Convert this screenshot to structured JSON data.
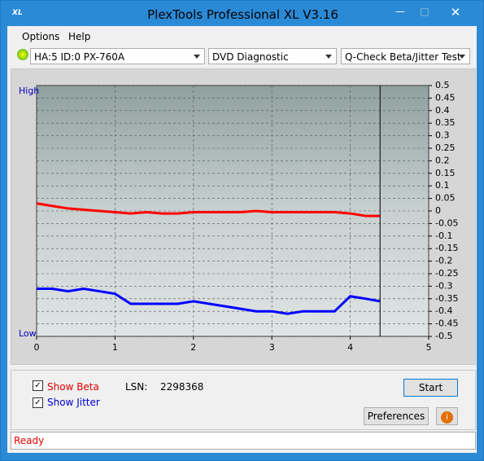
{
  "window": {
    "title": "PlexTools Professional XL V3.16",
    "icon": "XL"
  },
  "menu": [
    "Options",
    "Help"
  ],
  "toolbar": {
    "drive": "HA:5 ID:0  PX-760A",
    "function": "DVD Diagnostic Functions",
    "test": "Q-Check Beta/Jitter Test"
  },
  "chart_data": {
    "type": "line",
    "high_label": "High",
    "low_label": "Low",
    "x": [
      0,
      0.2,
      0.4,
      0.6,
      0.8,
      1.0,
      1.2,
      1.4,
      1.6,
      1.8,
      2.0,
      2.2,
      2.4,
      2.6,
      2.8,
      3.0,
      3.2,
      3.4,
      3.6,
      3.8,
      4.0,
      4.2,
      4.38
    ],
    "series": [
      {
        "color": "#ff0000",
        "values": [
          0.03,
          0.02,
          0.01,
          0.005,
          0.0,
          -0.005,
          -0.01,
          -0.005,
          -0.01,
          -0.01,
          -0.005,
          -0.005,
          -0.005,
          -0.005,
          0.0,
          -0.005,
          -0.005,
          -0.005,
          -0.005,
          -0.005,
          -0.01,
          -0.02,
          -0.02
        ]
      },
      {
        "color": "#0000ff",
        "values": [
          -0.31,
          -0.31,
          -0.32,
          -0.31,
          -0.32,
          -0.33,
          -0.37,
          -0.37,
          -0.37,
          -0.37,
          -0.36,
          -0.37,
          -0.38,
          -0.39,
          -0.4,
          -0.4,
          -0.41,
          -0.4,
          -0.4,
          -0.4,
          -0.34,
          -0.35,
          -0.36
        ]
      }
    ],
    "xlim": [
      0,
      5
    ],
    "xticks": [
      0,
      1,
      2,
      3,
      4,
      5
    ],
    "ylim": [
      -0.5,
      0.5
    ],
    "yticks": [
      0.5,
      0.45,
      0.4,
      0.35,
      0.3,
      0.25,
      0.2,
      0.15,
      0.1,
      0.05,
      0,
      -0.05,
      -0.1,
      -0.15,
      -0.2,
      -0.25,
      -0.3,
      -0.35,
      -0.4,
      -0.45,
      -0.5
    ],
    "grid": true
  },
  "controls": {
    "show_beta": "Show Beta",
    "show_jitter": "Show Jitter",
    "lsn_label": "LSN:",
    "lsn_value": "2298368",
    "start": "Start",
    "preferences": "Preferences"
  },
  "status": "Ready"
}
